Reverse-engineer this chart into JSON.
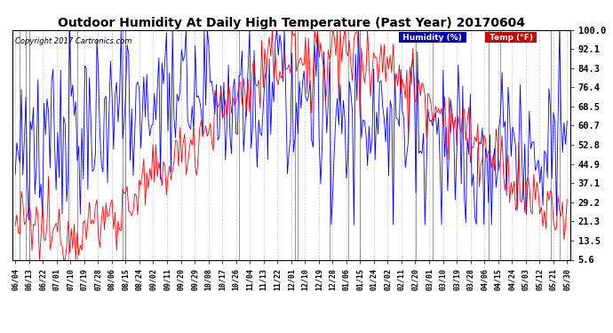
{
  "title": "Outdoor Humidity At Daily High Temperature (Past Year) 20170604",
  "copyright": "Copyright 2017 Cartronics.com",
  "ylabel_right_values": [
    100.0,
    92.1,
    84.3,
    76.4,
    68.5,
    60.7,
    52.8,
    44.9,
    37.1,
    29.2,
    21.3,
    13.5,
    5.6
  ],
  "ylim": [
    5.6,
    100.0
  ],
  "background_color": "#ffffff",
  "grid_color": "#cccccc",
  "humidity_color": "#0000ff",
  "temp_color": "#ff0000",
  "bar_color": "#000000",
  "title_fontsize": 10,
  "legend_humidity_bg": "#0000bb",
  "legend_temp_bg": "#cc0000",
  "x_tick_labels": [
    "06/04",
    "06/13",
    "06/22",
    "07/01",
    "07/10",
    "07/19",
    "07/28",
    "08/06",
    "08/15",
    "08/24",
    "09/02",
    "09/11",
    "09/20",
    "09/29",
    "10/08",
    "10/17",
    "10/26",
    "11/04",
    "11/13",
    "11/22",
    "12/01",
    "12/10",
    "12/19",
    "12/28",
    "01/06",
    "01/15",
    "01/24",
    "02/02",
    "02/11",
    "02/20",
    "03/01",
    "03/10",
    "03/19",
    "03/28",
    "04/06",
    "04/15",
    "04/24",
    "05/03",
    "05/12",
    "05/21",
    "05/30"
  ]
}
